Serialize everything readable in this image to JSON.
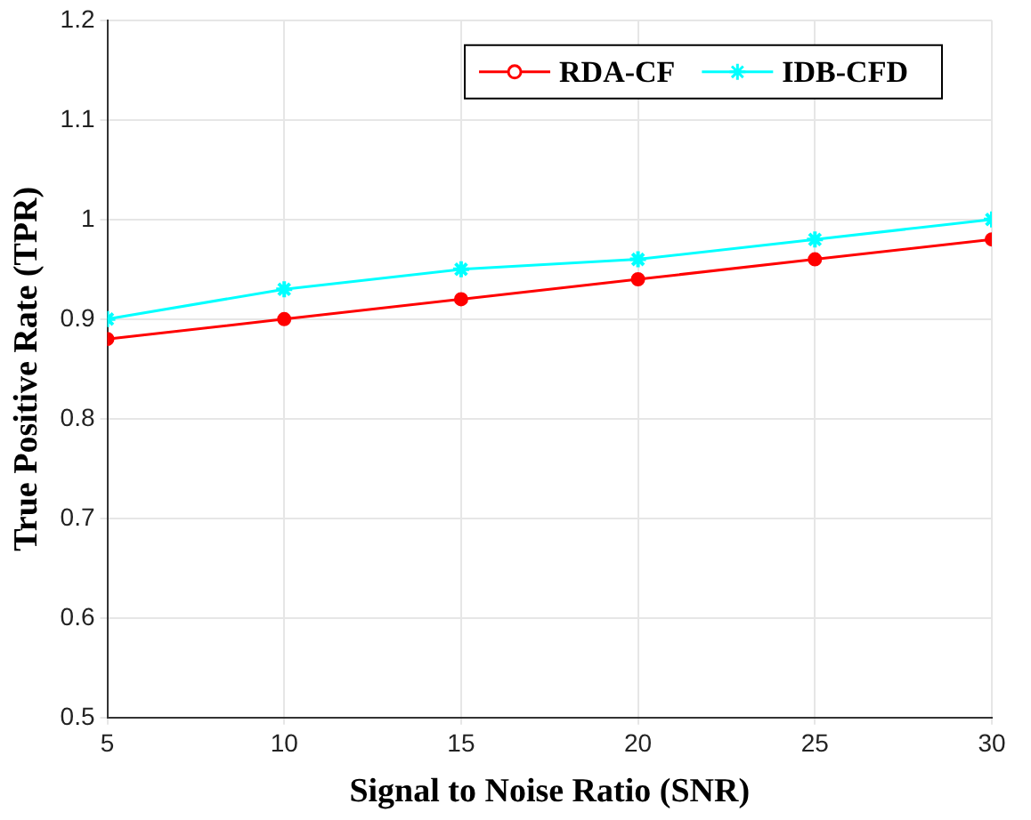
{
  "chart_data": {
    "type": "line",
    "xlabel": "Signal to Noise Ratio (SNR)",
    "ylabel": "True Positive Rate (TPR)",
    "x": [
      5,
      10,
      15,
      20,
      25,
      30
    ],
    "series": [
      {
        "name": "RDA-CF",
        "color": "#ff0000",
        "marker": "circle",
        "values": [
          0.88,
          0.9,
          0.92,
          0.94,
          0.96,
          0.98
        ]
      },
      {
        "name": "IDB-CFD",
        "color": "#00ffff",
        "marker": "cross",
        "values": [
          0.9,
          0.93,
          0.95,
          0.96,
          0.98,
          1.0
        ]
      }
    ],
    "xlim": [
      5,
      30
    ],
    "xticks": [
      5,
      10,
      15,
      20,
      25,
      30
    ],
    "ylim": [
      0.5,
      1.2
    ],
    "yticks": [
      0.5,
      0.6,
      0.7,
      0.8,
      0.9,
      1,
      1.1,
      1.2
    ],
    "grid": true,
    "legend": "top right",
    "line_style": "solid"
  }
}
